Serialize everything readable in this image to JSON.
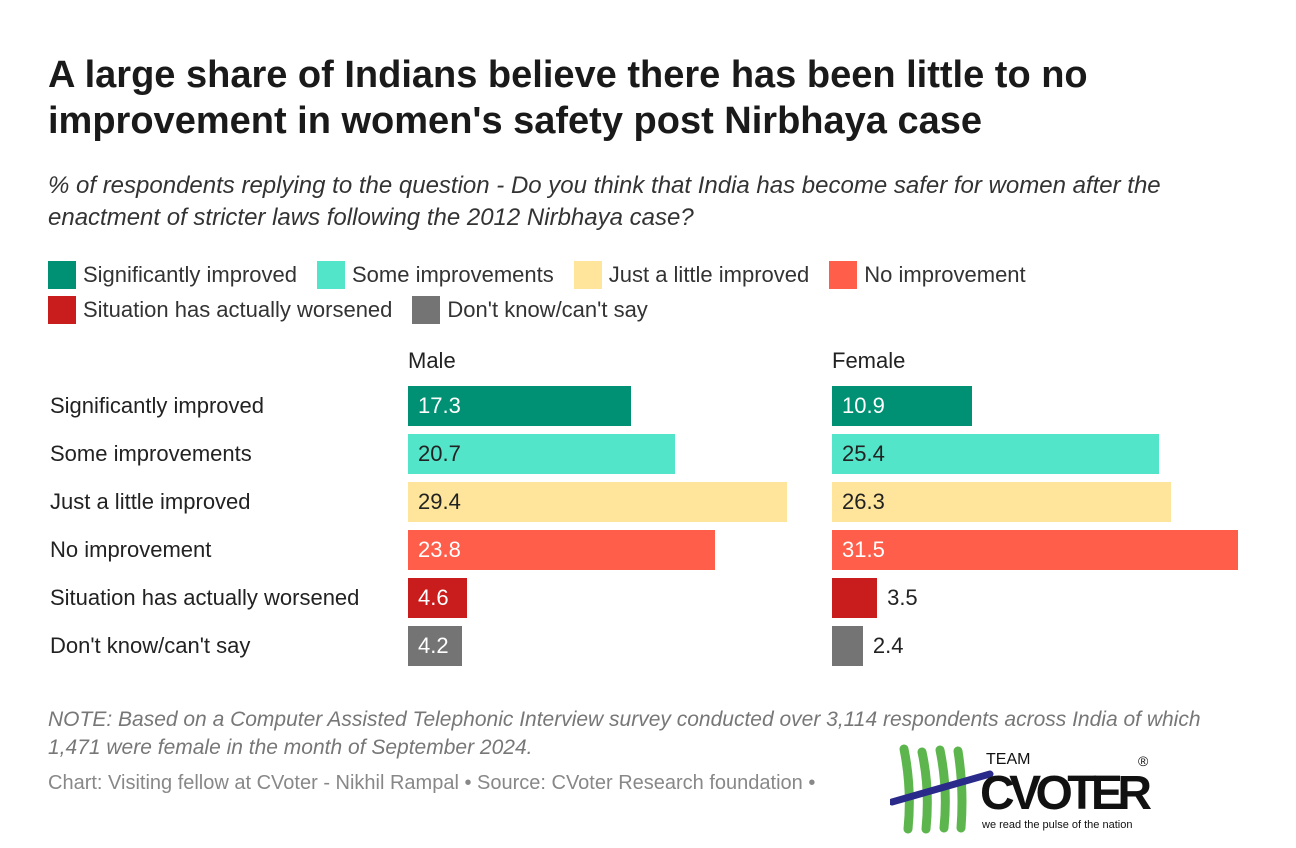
{
  "title": "A large share of Indians believe there has been little to no improvement in women's safety post Nirbhaya case",
  "subtitle": "% of respondents replying to the question - Do you think that India has become safer for women after the enactment of stricter laws following the 2012 Nirbhaya case?",
  "note": "NOTE: Based on a Computer Assisted Telephonic Interview survey conducted over 3,114 respondents across India of which 1,471 were female in the month of September 2024.",
  "source": "Chart: Visiting fellow at CVoter - Nikhil Rampal • Source: CVoter Research foundation •",
  "logo": {
    "top": "TEAM",
    "name": "CVOTER",
    "tagline": "we read the pulse of the nation",
    "mark": "®"
  },
  "chart_data": {
    "type": "bar",
    "orientation": "horizontal",
    "categories": [
      "Significantly improved",
      "Some improvements",
      "Just a little improved",
      "No improvement",
      "Situation has actually worsened",
      "Don't know/can't say"
    ],
    "colors": [
      "#009175",
      "#52e5c9",
      "#ffe59b",
      "#ff5e4a",
      "#c91c1c",
      "#747474"
    ],
    "legend": [
      "Significantly improved",
      "Some improvements",
      "Just a little improved",
      "No improvement",
      "Situation has actually worsened",
      "Don't know/can't say"
    ],
    "legend_position": "top",
    "panels": [
      {
        "name": "Male",
        "values": [
          17.3,
          20.7,
          29.4,
          23.8,
          4.6,
          4.2
        ]
      },
      {
        "name": "Female",
        "values": [
          10.9,
          25.4,
          26.3,
          31.5,
          3.5,
          2.4
        ]
      }
    ],
    "xlim": [
      0,
      31.5
    ],
    "grid": false
  }
}
